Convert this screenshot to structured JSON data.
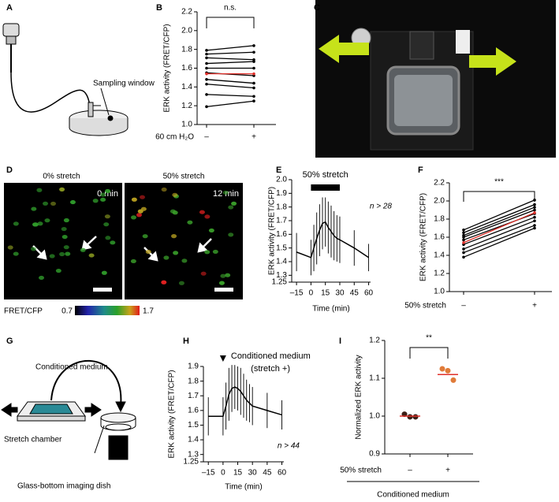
{
  "panel_labels": [
    "A",
    "B",
    "C",
    "D",
    "E",
    "F",
    "G",
    "H",
    "I"
  ],
  "panel_a": {
    "label": "Sampling window"
  },
  "panel_d": {
    "left_title": "0% stretch",
    "right_title": "50% stretch",
    "left_time": "0 min",
    "right_time": "12 min",
    "colorbar": {
      "label": "FRET/CFP",
      "min": 0.7,
      "max": 1.7
    }
  },
  "panel_g": {
    "medium": "Conditioned medium",
    "chamber": "Stretch chamber",
    "dish": "Glass-bottom imaging dish"
  },
  "chart_data": [
    {
      "type": "paired",
      "ylabel": "ERK activity (FRET/CFP)",
      "xlabel": "60 cm H₂O",
      "categories": [
        "–",
        "+"
      ],
      "ylim": [
        1.0,
        2.2
      ],
      "yticks": [
        {
          "value": 1,
          "label": "1.0"
        },
        1.2,
        1.4,
        1.6,
        1.8,
        {
          "value": 2,
          "label": "2.0"
        },
        2.2
      ],
      "significance": "n.s.",
      "series": [
        {
          "color": "#000000",
          "values": [
            1.79,
            1.84
          ]
        },
        {
          "color": "#000000",
          "values": [
            1.75,
            1.77
          ]
        },
        {
          "color": "#000000",
          "values": [
            1.71,
            1.69
          ]
        },
        {
          "color": "#000000",
          "values": [
            1.65,
            1.67
          ]
        },
        {
          "color": "#000000",
          "values": [
            1.6,
            1.6
          ]
        },
        {
          "color": "#000000",
          "values": [
            1.55,
            1.52
          ]
        },
        {
          "color": "#000000",
          "values": [
            1.48,
            1.44
          ]
        },
        {
          "color": "#000000",
          "values": [
            1.43,
            1.39
          ]
        },
        {
          "color": "#000000",
          "values": [
            1.32,
            1.3
          ]
        },
        {
          "color": "#000000",
          "values": [
            1.19,
            1.25
          ]
        },
        {
          "color": "#e0302a",
          "values": [
            1.54,
            1.54
          ]
        }
      ]
    },
    {
      "type": "line",
      "ylabel": "ERK activity (FRET/CFP)",
      "xlabel": "Time (min)",
      "annotation": "n > 28",
      "stimulus": {
        "label": "50% stretch",
        "start": 0,
        "end": 30
      },
      "x": [
        -15,
        0,
        3,
        6,
        9,
        12,
        15,
        18,
        21,
        24,
        27,
        30,
        45,
        60
      ],
      "values": [
        1.47,
        1.43,
        1.5,
        1.57,
        1.63,
        1.68,
        1.69,
        1.65,
        1.62,
        1.59,
        1.57,
        1.56,
        1.5,
        1.43
      ],
      "errors": [
        0.14,
        0.13,
        0.17,
        0.19,
        0.19,
        0.19,
        0.18,
        0.19,
        0.19,
        0.18,
        0.17,
        0.17,
        0.13,
        0.1
      ],
      "xlim": [
        -20,
        62
      ],
      "xticks": [
        {
          "value": -15,
          "label": "–15"
        },
        0,
        15,
        30,
        45,
        60
      ],
      "ylim": [
        1.25,
        2.0
      ],
      "yticks": [
        1.25,
        1.3,
        1.4,
        1.5,
        1.6,
        1.7,
        1.8,
        1.9,
        {
          "value": 2,
          "label": "2.0"
        }
      ]
    },
    {
      "type": "paired",
      "ylabel": "ERK activity (FRET/CFP)",
      "xlabel": "50% stretch",
      "categories": [
        "–",
        "+"
      ],
      "ylim": [
        1.0,
        2.2
      ],
      "yticks": [
        {
          "value": 1,
          "label": "1.0"
        },
        1.2,
        1.4,
        1.6,
        1.8,
        {
          "value": 2,
          "label": "2.0"
        },
        2.2
      ],
      "significance": "***",
      "series": [
        {
          "color": "#000000",
          "values": [
            1.68,
            2.01
          ]
        },
        {
          "color": "#000000",
          "values": [
            1.65,
            1.96
          ]
        },
        {
          "color": "#000000",
          "values": [
            1.62,
            1.93
          ]
        },
        {
          "color": "#000000",
          "values": [
            1.6,
            1.9
          ]
        },
        {
          "color": "#000000",
          "values": [
            1.57,
            1.86
          ]
        },
        {
          "color": "#000000",
          "values": [
            1.52,
            1.82
          ]
        },
        {
          "color": "#000000",
          "values": [
            1.47,
            1.78
          ]
        },
        {
          "color": "#000000",
          "values": [
            1.43,
            1.73
          ]
        },
        {
          "color": "#000000",
          "values": [
            1.38,
            1.7
          ]
        },
        {
          "color": "#e0302a",
          "values": [
            1.54,
            1.87
          ]
        }
      ]
    },
    {
      "type": "line",
      "ylabel": "ERK activity (FRET/CFP)",
      "xlabel": "Time (min)",
      "annotation": "n > 44",
      "stimulus": {
        "label": "Conditioned medium",
        "sublabel": "(stretch +)",
        "start": 0
      },
      "x": [
        -15,
        0,
        3,
        6,
        9,
        12,
        15,
        18,
        21,
        24,
        27,
        30,
        45,
        60
      ],
      "values": [
        1.56,
        1.56,
        1.63,
        1.71,
        1.75,
        1.76,
        1.75,
        1.73,
        1.7,
        1.67,
        1.65,
        1.63,
        1.6,
        1.57
      ],
      "errors": [
        0.13,
        0.13,
        0.16,
        0.18,
        0.16,
        0.15,
        0.15,
        0.16,
        0.15,
        0.14,
        0.13,
        0.13,
        0.12,
        0.1
      ],
      "xlim": [
        -20,
        62
      ],
      "xticks": [
        {
          "value": -15,
          "label": "–15"
        },
        0,
        15,
        30,
        45,
        60
      ],
      "ylim": [
        1.25,
        1.9
      ],
      "yticks": [
        1.25,
        1.3,
        1.4,
        1.5,
        1.6,
        1.7,
        1.8,
        1.9
      ]
    },
    {
      "type": "dot",
      "ylabel": "Normalized ERK activity",
      "xlabel": "50% stretch",
      "group_label": "Conditioned medium",
      "categories": [
        "–",
        "+"
      ],
      "significance": "**",
      "points": [
        [
          1.005,
          0.998,
          0.998
        ],
        [
          1.125,
          1.12,
          1.095
        ]
      ],
      "means": [
        1.0,
        1.11
      ],
      "colors": [
        "#3b1f17",
        "#e07b39"
      ],
      "mean_color": "#e0302a",
      "ylim": [
        0.9,
        1.2
      ],
      "yticks": [
        0.9,
        {
          "value": 1,
          "label": "1.0"
        },
        1.1,
        1.2
      ]
    }
  ]
}
